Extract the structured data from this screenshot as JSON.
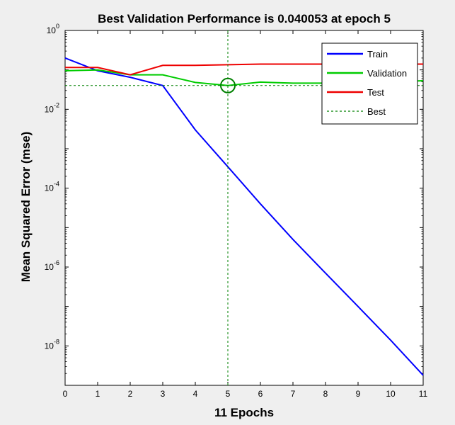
{
  "chart_data": {
    "type": "line",
    "title": "Best Validation Performance is 0.040053 at epoch 5",
    "xlabel": "11 Epochs",
    "ylabel": "Mean Squared Error  (mse)",
    "xlim": [
      0,
      11
    ],
    "ylim": [
      1e-09,
      1
    ],
    "yscale": "log",
    "x_ticks": [
      "0",
      "1",
      "2",
      "3",
      "4",
      "5",
      "6",
      "7",
      "8",
      "9",
      "10",
      "11"
    ],
    "y_ticks": [
      {
        "base": "10",
        "exp": "-8",
        "value": 1e-08
      },
      {
        "base": "10",
        "exp": "-6",
        "value": 1e-06
      },
      {
        "base": "10",
        "exp": "-4",
        "value": 0.0001
      },
      {
        "base": "10",
        "exp": "-2",
        "value": 0.01
      },
      {
        "base": "10",
        "exp": "0",
        "value": 1
      }
    ],
    "legend_position": "top-right",
    "series": [
      {
        "name": "Train",
        "color": "#0000ff",
        "x": [
          0,
          1,
          2,
          3,
          4,
          5,
          6,
          7,
          8,
          9,
          10,
          11
        ],
        "y": [
          0.2,
          0.095,
          0.065,
          0.04,
          0.003,
          0.00035,
          4e-05,
          5e-06,
          7e-07,
          1e-07,
          1.4e-08,
          1.8e-09
        ]
      },
      {
        "name": "Validation",
        "color": "#00cc00",
        "x": [
          0,
          1,
          2,
          3,
          4,
          5,
          6,
          7,
          8,
          9,
          10,
          11
        ],
        "y": [
          0.095,
          0.1,
          0.075,
          0.075,
          0.048,
          0.040053,
          0.049,
          0.046,
          0.046,
          0.048,
          0.05,
          0.053
        ]
      },
      {
        "name": "Test",
        "color": "#ee0000",
        "x": [
          0,
          1,
          2,
          3,
          4,
          5,
          6,
          7,
          8,
          9,
          10,
          11
        ],
        "y": [
          0.115,
          0.115,
          0.075,
          0.13,
          0.13,
          0.135,
          0.14,
          0.14,
          0.14,
          0.14,
          0.14,
          0.14
        ]
      }
    ],
    "best": {
      "name": "Best",
      "color": "#008000",
      "epoch": 5,
      "value": 0.040053
    }
  }
}
